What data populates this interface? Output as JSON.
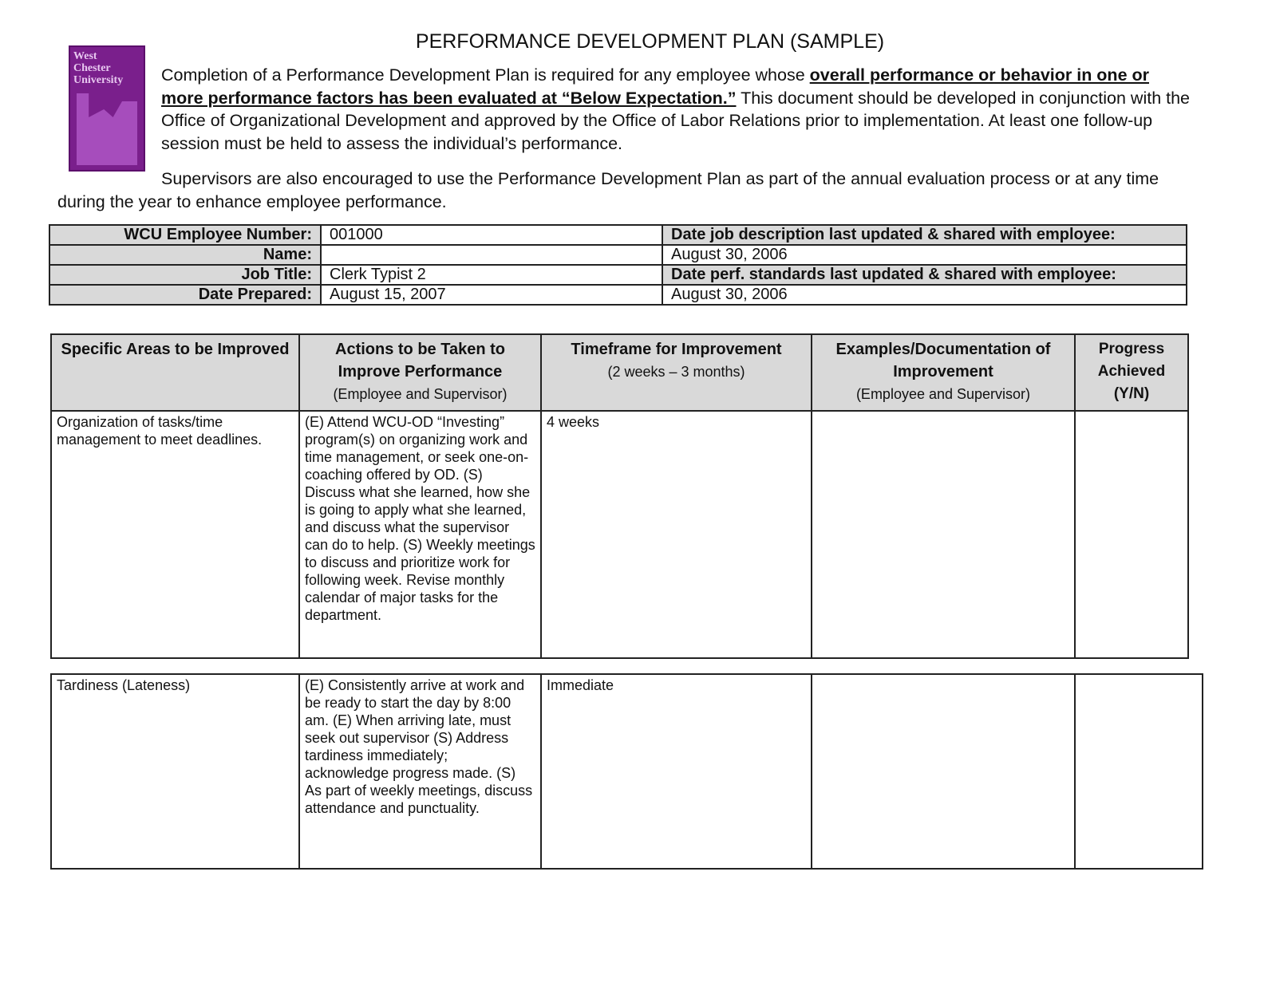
{
  "title": "PERFORMANCE DEVELOPMENT PLAN (SAMPLE)",
  "logo": {
    "text": "West Chester University",
    "color": "#7a1f8c"
  },
  "intro": {
    "p1_start": "Completion of a Performance Development Plan is required for any employee whose ",
    "p1_bold": "overall performance or behavior in one or more performance factors has been evaluated at “Below Expectation.”",
    "p1_end": "  This document should be developed in conjunction with the Office of Organizational Development and approved by the Office of Labor Relations prior to implementation.  At least one follow-up session must be held to assess the individual’s performance.",
    "p2": "Supervisors are also encouraged to use the Performance Development Plan as part of the annual evaluation process or at any time during the year to enhance employee performance."
  },
  "info": {
    "employee_number_label": "WCU Employee Number:",
    "employee_number": "001000",
    "name_label": "Name:",
    "name": "",
    "job_title_label": "Job Title:",
    "job_title": "Clerk Typist 2",
    "date_prepared_label": "Date Prepared:",
    "date_prepared": "August 15, 2007",
    "job_desc_label": "Date job description last updated & shared with employee:",
    "job_desc_date": "August 30, 2006",
    "perf_std_label": "Date perf. standards last updated & shared with employee:",
    "perf_std_date": "August 30, 2006"
  },
  "plan": {
    "headers": [
      {
        "title": "Specific Areas to be Improved",
        "sub": ""
      },
      {
        "title": "Actions to be Taken to Improve Performance",
        "sub": "(Employee and Supervisor)"
      },
      {
        "title": "Timeframe for Improvement",
        "sub": "(2 weeks – 3 months)"
      },
      {
        "title": "Examples/Documentation of Improvement",
        "sub": "(Employee and Supervisor)"
      },
      {
        "title": "Progress Achieved (Y/N)",
        "sub": ""
      }
    ],
    "rows": [
      {
        "area": "Organization of tasks/time management to meet deadlines.",
        "actions": "(E)  Attend WCU-OD “Investing” program(s) on organizing work and time management, or seek one-on-coaching offered by OD. (S) Discuss what she learned, how she is going to apply what she learned, and discuss what the supervisor can do to help. (S) Weekly meetings to discuss and prioritize work for following week. Revise monthly calendar of major tasks for the department.",
        "timeframe": "4 weeks",
        "examples": "",
        "progress": ""
      },
      {
        "area": "Tardiness (Lateness)",
        "actions": "(E) Consistently arrive at work and be ready to start the day by 8:00 am. (E) When arriving late, must seek out supervisor (S) Address tardiness immediately; acknowledge progress made. (S) As part of weekly meetings, discuss attendance and punctuality.",
        "timeframe": "Immediate",
        "examples": "",
        "progress": ""
      }
    ]
  }
}
